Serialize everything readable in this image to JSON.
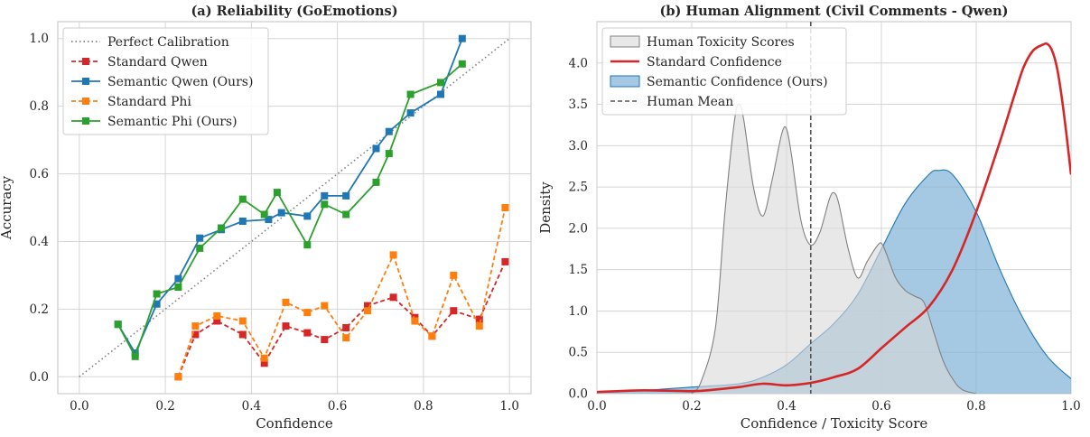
{
  "chart_data": [
    {
      "type": "line",
      "title": "(a) Reliability (GoEmotions)",
      "xlabel": "Confidence",
      "ylabel": "Accuracy",
      "xlim": [
        -0.05,
        1.05
      ],
      "ylim": [
        -0.05,
        1.05
      ],
      "xticks": [
        "0.0",
        "0.2",
        "0.4",
        "0.6",
        "0.8",
        "1.0"
      ],
      "yticks": [
        "0.0",
        "0.2",
        "0.4",
        "0.6",
        "0.8",
        "1.0"
      ],
      "grid": true,
      "legend_position": "top-left",
      "series": [
        {
          "name": "Perfect Calibration",
          "color": "#7f7f7f",
          "style": "dotted",
          "marker": "none",
          "x": [
            0,
            1
          ],
          "y": [
            0,
            1
          ]
        },
        {
          "name": "Standard Qwen",
          "color": "#d62728",
          "style": "dashed",
          "marker": "square",
          "x": [
            0.23,
            0.27,
            0.32,
            0.38,
            0.43,
            0.48,
            0.53,
            0.57,
            0.62,
            0.67,
            0.73,
            0.78,
            0.82,
            0.87,
            0.93,
            0.99
          ],
          "y": [
            0.0,
            0.125,
            0.165,
            0.125,
            0.04,
            0.15,
            0.13,
            0.11,
            0.145,
            0.21,
            0.235,
            0.175,
            0.12,
            0.195,
            0.17,
            0.34
          ]
        },
        {
          "name": "Semantic Qwen (Ours)",
          "color": "#1f77b4",
          "style": "solid",
          "marker": "square",
          "x": [
            0.09,
            0.13,
            0.18,
            0.23,
            0.28,
            0.33,
            0.38,
            0.44,
            0.47,
            0.53,
            0.57,
            0.62,
            0.69,
            0.72,
            0.77,
            0.84,
            0.89
          ],
          "y": [
            0.155,
            0.07,
            0.215,
            0.29,
            0.41,
            0.435,
            0.46,
            0.465,
            0.485,
            0.475,
            0.535,
            0.535,
            0.675,
            0.725,
            0.78,
            0.835,
            1.0
          ]
        },
        {
          "name": "Standard Phi",
          "color": "#ff7f0e",
          "style": "dashed",
          "marker": "square",
          "x": [
            0.23,
            0.27,
            0.32,
            0.38,
            0.43,
            0.48,
            0.53,
            0.57,
            0.62,
            0.67,
            0.73,
            0.78,
            0.82,
            0.87,
            0.93,
            0.99
          ],
          "y": [
            0.0,
            0.15,
            0.18,
            0.165,
            0.055,
            0.22,
            0.19,
            0.21,
            0.115,
            0.195,
            0.36,
            0.165,
            0.12,
            0.3,
            0.15,
            0.5
          ]
        },
        {
          "name": "Semantic Phi (Ours)",
          "color": "#2ca02c",
          "style": "solid",
          "marker": "square",
          "x": [
            0.09,
            0.13,
            0.18,
            0.23,
            0.28,
            0.33,
            0.38,
            0.43,
            0.46,
            0.53,
            0.57,
            0.62,
            0.69,
            0.72,
            0.77,
            0.84,
            0.89
          ],
          "y": [
            0.155,
            0.06,
            0.245,
            0.265,
            0.38,
            0.44,
            0.525,
            0.48,
            0.545,
            0.39,
            0.51,
            0.48,
            0.575,
            0.66,
            0.835,
            0.87,
            0.925
          ]
        }
      ]
    },
    {
      "type": "area",
      "title": "(b) Human Alignment (Civil Comments - Qwen)",
      "xlabel": "Confidence / Toxicity Score",
      "ylabel": "Density",
      "xlim": [
        0.0,
        1.0
      ],
      "ylim": [
        0.0,
        4.5
      ],
      "xticks": [
        "0.0",
        "0.2",
        "0.4",
        "0.6",
        "0.8",
        "1.0"
      ],
      "yticks": [
        "0.0",
        "0.5",
        "1.0",
        "1.5",
        "2.0",
        "2.5",
        "3.0",
        "3.5",
        "4.0"
      ],
      "grid": true,
      "legend_position": "top-left",
      "series": [
        {
          "name": "Human Toxicity Scores",
          "kind": "filled",
          "color": "#d9d9d9",
          "edge": "#808080",
          "x": [
            0.2,
            0.22,
            0.25,
            0.27,
            0.29,
            0.3,
            0.31,
            0.33,
            0.35,
            0.37,
            0.39,
            0.4,
            0.41,
            0.43,
            0.45,
            0.47,
            0.49,
            0.5,
            0.51,
            0.53,
            0.55,
            0.57,
            0.59,
            0.6,
            0.61,
            0.63,
            0.65,
            0.67,
            0.69,
            0.71,
            0.73,
            0.75,
            0.77,
            0.8
          ],
          "y": [
            0.0,
            0.15,
            0.8,
            2.2,
            3.3,
            3.5,
            3.3,
            2.5,
            2.15,
            2.6,
            3.15,
            3.2,
            2.9,
            2.1,
            1.8,
            1.95,
            2.35,
            2.43,
            2.3,
            1.75,
            1.4,
            1.6,
            1.78,
            1.82,
            1.7,
            1.4,
            1.25,
            1.18,
            1.1,
            0.75,
            0.4,
            0.18,
            0.05,
            0.0
          ]
        },
        {
          "name": "Standard Confidence",
          "kind": "line",
          "color": "#d62728",
          "x": [
            0.0,
            0.1,
            0.2,
            0.25,
            0.3,
            0.35,
            0.4,
            0.45,
            0.5,
            0.55,
            0.6,
            0.65,
            0.7,
            0.75,
            0.8,
            0.85,
            0.88,
            0.9,
            0.92,
            0.94,
            0.95,
            0.96,
            0.97,
            0.98,
            0.99,
            1.0
          ],
          "y": [
            0.02,
            0.04,
            0.03,
            0.05,
            0.08,
            0.12,
            0.1,
            0.13,
            0.2,
            0.3,
            0.55,
            0.8,
            1.05,
            1.5,
            2.2,
            3.05,
            3.6,
            3.95,
            4.15,
            4.22,
            4.23,
            4.15,
            3.95,
            3.6,
            3.15,
            2.65
          ]
        },
        {
          "name": "Semantic Confidence (Ours)",
          "kind": "filled",
          "color": "#7fb2d6",
          "edge": "#1f77b4",
          "x": [
            0.0,
            0.1,
            0.2,
            0.3,
            0.35,
            0.4,
            0.45,
            0.5,
            0.55,
            0.6,
            0.65,
            0.7,
            0.72,
            0.75,
            0.8,
            0.85,
            0.9,
            0.95,
            1.0
          ],
          "y": [
            0.02,
            0.04,
            0.08,
            0.12,
            0.2,
            0.35,
            0.6,
            0.85,
            1.2,
            1.75,
            2.3,
            2.65,
            2.7,
            2.65,
            2.2,
            1.5,
            0.9,
            0.45,
            0.18
          ]
        },
        {
          "name": "Human Mean",
          "kind": "vline",
          "color": "#555555",
          "x": 0.451
        }
      ]
    }
  ]
}
